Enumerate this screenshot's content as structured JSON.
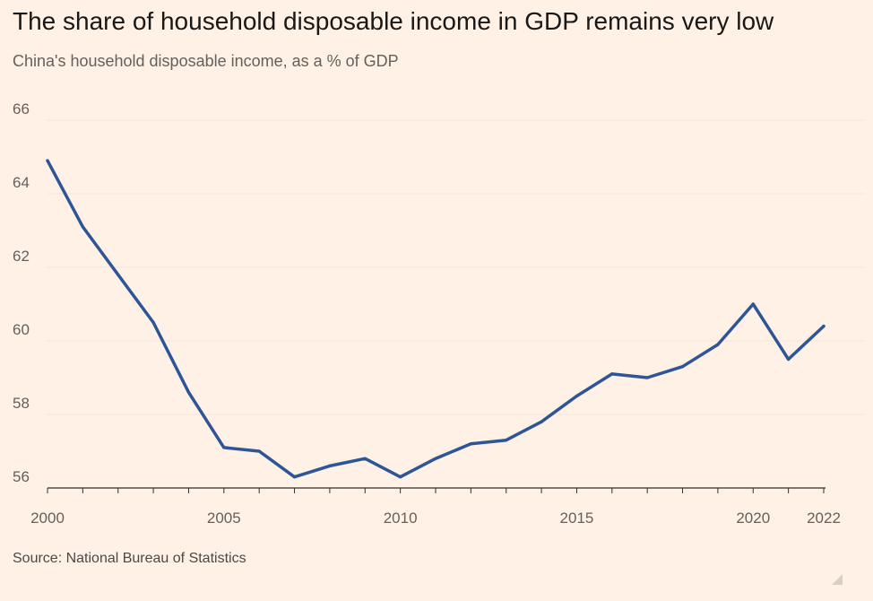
{
  "header": {
    "title": "The share of household disposable income in GDP remains very low",
    "subtitle": "China's household disposable income, as a % of GDP"
  },
  "footer": {
    "source": "Source: National Bureau of Statistics"
  },
  "colors": {
    "background": "#fff1e5",
    "line": "#2e5597",
    "grid": "#f2e5da",
    "axis": "#33302e",
    "text_muted": "#66605c"
  },
  "chart_data": {
    "type": "line",
    "title": "The share of household disposable income in GDP remains very low",
    "subtitle": "China's household disposable income, as a % of GDP",
    "xlabel": "",
    "ylabel": "",
    "x": [
      2000,
      2001,
      2002,
      2003,
      2004,
      2005,
      2006,
      2007,
      2008,
      2009,
      2010,
      2011,
      2012,
      2013,
      2014,
      2015,
      2016,
      2017,
      2018,
      2019,
      2020,
      2021,
      2022
    ],
    "series": [
      {
        "name": "",
        "values": [
          64.9,
          63.1,
          61.8,
          60.5,
          58.6,
          57.1,
          57.0,
          56.3,
          56.6,
          56.8,
          56.3,
          56.8,
          57.2,
          57.3,
          57.8,
          58.5,
          59.1,
          59.0,
          59.3,
          59.9,
          61.0,
          59.5,
          60.4
        ]
      }
    ],
    "xlim": [
      2000,
      2022
    ],
    "ylim": [
      56,
      66
    ],
    "yticks": [
      56,
      58,
      60,
      62,
      64,
      66
    ],
    "xticks": [
      2000,
      2005,
      2010,
      2015,
      2020,
      2022
    ],
    "grid": true
  }
}
